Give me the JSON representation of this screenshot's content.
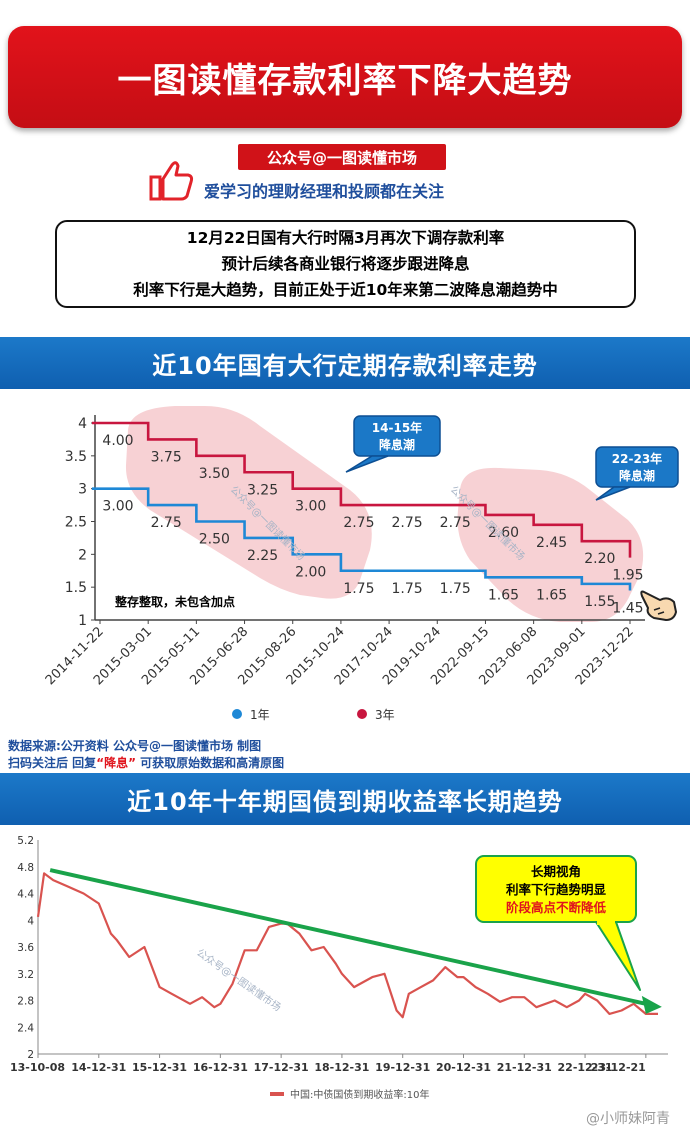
{
  "header": {
    "title": "一图读懂存款利率下降大趋势",
    "account_badge": "公众号@一图读懂市场",
    "follow_text": "爱学习的理财经理和投顾都在关注"
  },
  "notice": {
    "lines": [
      "12月22日国有大行时隔3月再次下调存款利率",
      "预计后续各商业银行将逐步跟进降息",
      "利率下行是大趋势，目前正处于近10年来第二波降息潮趋势中"
    ]
  },
  "section1": {
    "title": "近10年国有大行定期存款利率走势"
  },
  "section2": {
    "title": "近10年十年期国债到期收益率长期趋势"
  },
  "source": {
    "line1": "数据来源:公开资料 公众号@一图读懂市场 制图",
    "line2_prefix": "扫码关注后 回复",
    "line2_keyword": "“降息”",
    "line2_suffix": " 可获取原始数据和高清原图"
  },
  "watermark": "@小师妹阿青",
  "chart_data": [
    {
      "type": "line",
      "title": "",
      "categories": [
        "2014-11-22",
        "2015-03-01",
        "2015-05-11",
        "2015-06-28",
        "2015-08-26",
        "2015-10-24",
        "2017-10-24",
        "2019-10-24",
        "2022-09-15",
        "2023-06-08",
        "2023-09-01",
        "2023-12-22"
      ],
      "series": [
        {
          "name": "1年",
          "color": "#1e88d6",
          "values": [
            3.0,
            2.75,
            2.5,
            2.25,
            2.0,
            1.75,
            1.75,
            1.75,
            1.65,
            1.65,
            1.55,
            1.45
          ]
        },
        {
          "name": "3年",
          "color": "#c8163f",
          "values": [
            4.0,
            3.75,
            3.5,
            3.25,
            3.0,
            2.75,
            2.75,
            2.75,
            2.6,
            2.45,
            2.2,
            1.95
          ]
        }
      ],
      "y_ticks": [
        "1",
        "1.5",
        "2",
        "2.5",
        "3",
        "3.5",
        "4"
      ],
      "ylim": [
        1,
        4
      ],
      "note": "整存整取，未包含加点",
      "callouts": [
        {
          "text_lines": [
            "14-15年",
            "降息潮"
          ]
        },
        {
          "text_lines": [
            "22-23年",
            "降息潮"
          ]
        }
      ],
      "watermark": "公众号@一图读懂市场",
      "legend_placement": "bottom"
    },
    {
      "type": "line",
      "title": "",
      "x_ticks": [
        "13-10-08",
        "14-12-31",
        "15-12-31",
        "16-12-31",
        "17-12-31",
        "18-12-31",
        "19-12-31",
        "20-12-31",
        "21-12-31",
        "22-12-31",
        "23-12-21"
      ],
      "y_ticks": [
        "2",
        "2.4",
        "2.8",
        "3.2",
        "3.6",
        "4",
        "4.4",
        "4.8",
        "5.2"
      ],
      "ylim": [
        2,
        5.2
      ],
      "series": [
        {
          "name": "中国:中债国债到期收益率:10年",
          "color": "#d9534f",
          "x": [
            0.0,
            0.1,
            0.25,
            0.5,
            0.75,
            1.0,
            1.2,
            1.3,
            1.5,
            1.75,
            2.0,
            2.2,
            2.5,
            2.7,
            2.9,
            3.0,
            3.2,
            3.4,
            3.6,
            3.8,
            4.0,
            4.1,
            4.3,
            4.5,
            4.7,
            4.9,
            5.0,
            5.2,
            5.5,
            5.7,
            5.9,
            6.0,
            6.1,
            6.3,
            6.5,
            6.7,
            6.9,
            7.0,
            7.2,
            7.4,
            7.6,
            7.8,
            8.0,
            8.2,
            8.5,
            8.7,
            8.9,
            9.0,
            9.2,
            9.4,
            9.6,
            9.8,
            10.0,
            10.2
          ],
          "values": [
            4.05,
            4.7,
            4.6,
            4.5,
            4.4,
            4.25,
            3.8,
            3.7,
            3.45,
            3.6,
            3.0,
            2.9,
            2.75,
            2.85,
            2.7,
            2.75,
            3.05,
            3.55,
            3.55,
            3.9,
            3.95,
            3.95,
            3.8,
            3.55,
            3.6,
            3.35,
            3.2,
            3.0,
            3.15,
            3.2,
            2.65,
            2.55,
            2.9,
            3.0,
            3.1,
            3.3,
            3.15,
            3.15,
            3.0,
            2.9,
            2.78,
            2.85,
            2.85,
            2.7,
            2.8,
            2.7,
            2.8,
            2.9,
            2.8,
            2.6,
            2.65,
            2.75,
            2.6,
            2.6
          ]
        }
      ],
      "trend_line": {
        "color": "#1aa34a"
      },
      "callout": {
        "lines": [
          "长期视角",
          "利率下行趋势明显",
          "阶段高点不断降低"
        ]
      },
      "watermark": "公众号@一图读懂市场",
      "legend_placement": "bottom"
    }
  ]
}
